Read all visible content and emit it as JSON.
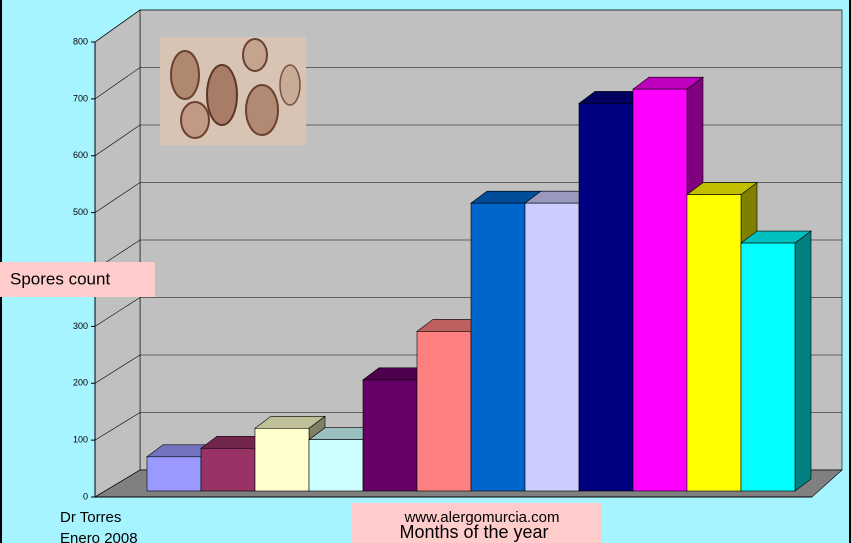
{
  "chart_data": {
    "type": "bar3d",
    "y_label": "Spores count",
    "x_label": "Months of the year",
    "author": "Dr Torres",
    "date": "Enero 2008",
    "website": "www.alergomurcia.com",
    "categories": [
      null,
      null,
      null,
      null,
      null,
      null,
      null,
      null,
      null,
      null,
      null,
      null
    ],
    "values": [
      60,
      75,
      110,
      90,
      195,
      280,
      505,
      505,
      680,
      705,
      520,
      435
    ],
    "colors": [
      "#9999ff",
      "#993366",
      "#ffffcc",
      "#ccffff",
      "#660066",
      "#ff8080",
      "#0066cc",
      "#ccccff",
      "#000080",
      "#ff00ff",
      "#ffff00",
      "#00ffff"
    ],
    "ylim": [
      0,
      800
    ],
    "yticks": [
      0,
      100,
      200,
      300,
      400,
      500,
      600,
      700,
      800
    ],
    "grid": true
  }
}
